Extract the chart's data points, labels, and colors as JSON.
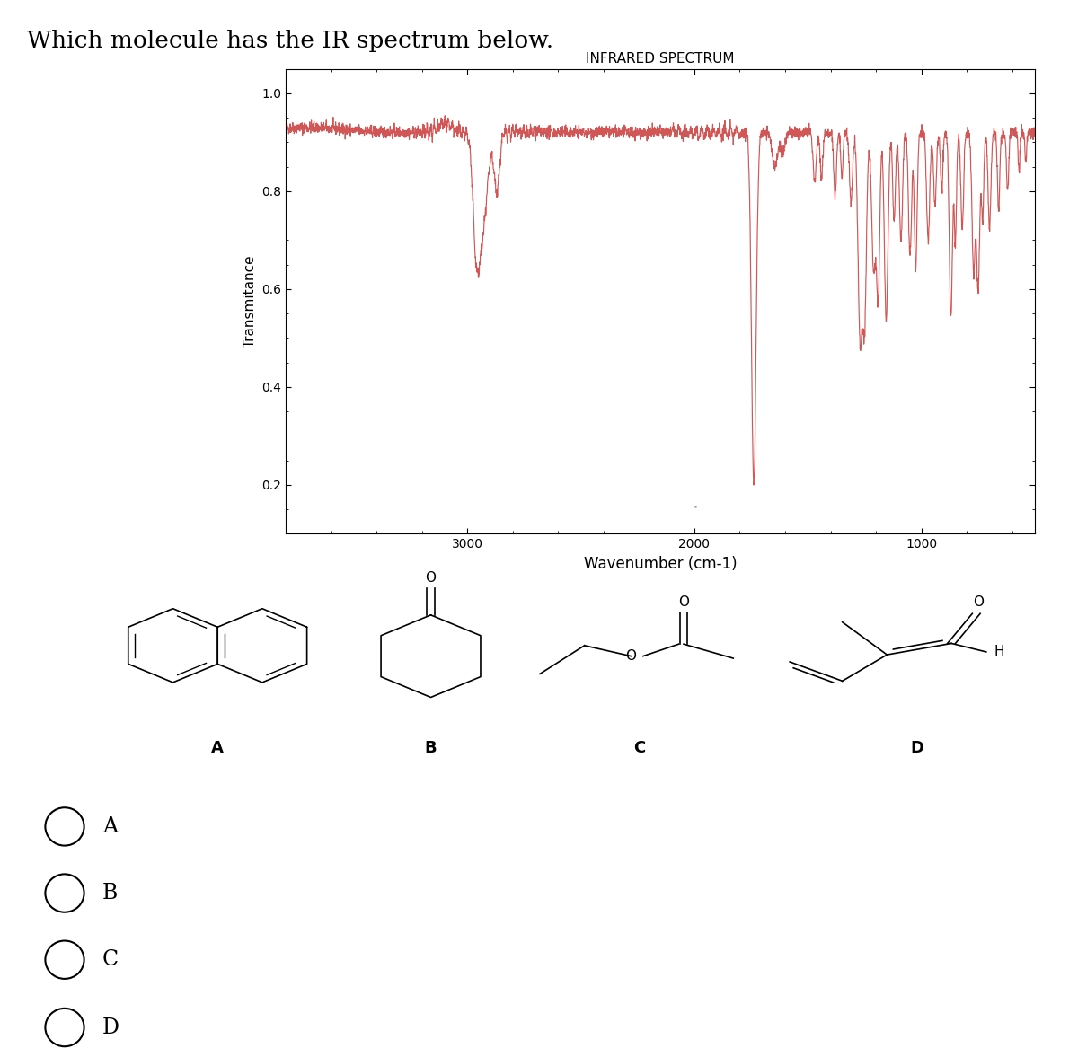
{
  "title": "Which molecule has the IR spectrum below.",
  "spectrum_title": "INFRARED SPECTRUM",
  "xlabel": "Wavenumber (cm-1)",
  "ylabel": "Transmitance",
  "xlim": [
    3800,
    500
  ],
  "ylim": [
    0.1,
    1.05
  ],
  "yticks": [
    0.2,
    0.4,
    0.6,
    0.8,
    1
  ],
  "xticks": [
    3000,
    2000,
    1000
  ],
  "line_color": "#cc4444",
  "bg_color": "#ffffff",
  "options": [
    "A",
    "B",
    "C",
    "D"
  ]
}
